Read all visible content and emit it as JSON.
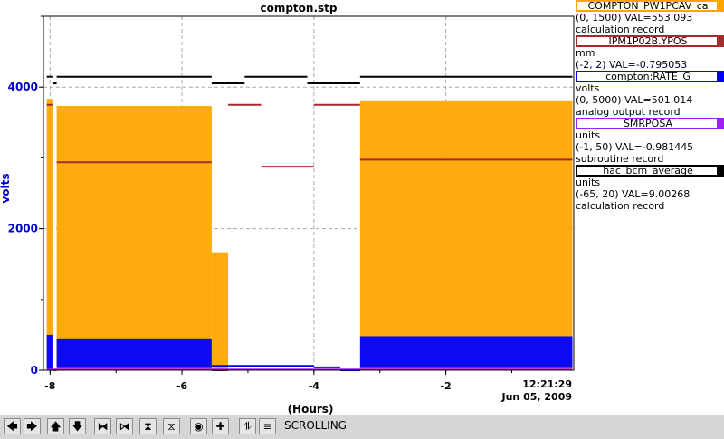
{
  "chart_data": {
    "type": "line",
    "title": "compton.stp",
    "xlabel": "(Hours)",
    "ylabel": "volts",
    "xlim": [
      -8.1,
      -0.06
    ],
    "ylim": [
      0,
      5000
    ],
    "x_ticks": [
      -8,
      -6,
      -4,
      -2
    ],
    "x_tick_labels": [
      "-8",
      "-6",
      "-4",
      "-2"
    ],
    "y_ticks": [
      0,
      2000,
      4000
    ],
    "y_tick_labels": [
      "0",
      "2000",
      "4000"
    ],
    "end_time": "12:21:29",
    "end_date": "Jun 05, 2009",
    "grid": true,
    "series": [
      {
        "name": "COMPTON_PW1PCAV_ca",
        "color": "#ffa500",
        "segments": [
          {
            "x": [
              -8.05,
              -7.95
            ],
            "low": 0,
            "high": 1150
          },
          {
            "x": [
              -7.9,
              -5.55
            ],
            "low": 0,
            "high": 1120
          },
          {
            "x": [
              -5.55,
              -5.3
            ],
            "low": 0,
            "high": 500
          },
          {
            "x": [
              -3.3,
              -0.08
            ],
            "low": 0,
            "high": 1140
          }
        ]
      },
      {
        "name": "IPM1P02B.YPOS",
        "color": "#a52a2a",
        "segments": [
          {
            "x": [
              -8.05,
              -7.95
            ],
            "y": 1.0
          },
          {
            "x": [
              -7.95,
              -7.9
            ],
            "y": -2.0
          },
          {
            "x": [
              -7.9,
              -5.55
            ],
            "y": 0.35
          },
          {
            "x": [
              -5.55,
              -5.3
            ],
            "y": -2.0
          },
          {
            "x": [
              -5.3,
              -4.8
            ],
            "y": 1.0
          },
          {
            "x": [
              -4.8,
              -4.0
            ],
            "y": 0.3
          },
          {
            "x": [
              -4.0,
              -3.3
            ],
            "y": 1.0
          },
          {
            "x": [
              -3.3,
              -0.08
            ],
            "y": 0.38
          }
        ]
      },
      {
        "name": "compton:RATE_G",
        "color": "#0000ff",
        "segments": [
          {
            "x": [
              -8.05,
              -7.95
            ],
            "low": 0,
            "high": 500
          },
          {
            "x": [
              -7.9,
              -5.55
            ],
            "low": 30,
            "high": 450
          },
          {
            "x": [
              -5.55,
              -4.0
            ],
            "y": 60
          },
          {
            "x": [
              -4.0,
              -3.6
            ],
            "y": 40
          },
          {
            "x": [
              -3.6,
              -3.3
            ],
            "y": 0
          },
          {
            "x": [
              -3.3,
              -0.08
            ],
            "low": 30,
            "high": 480
          }
        ]
      },
      {
        "name": "SMRPOSA",
        "color": "#a020f0",
        "segments": [
          {
            "x": [
              -8.05,
              -0.08
            ],
            "y": -0.9
          }
        ]
      },
      {
        "name": "hac_bcm_average",
        "color": "#000000",
        "segments": [
          {
            "x": [
              -8.05,
              -7.95
            ],
            "y": 5.5
          },
          {
            "x": [
              -7.95,
              -7.9
            ],
            "y": 3.9
          },
          {
            "x": [
              -7.9,
              -5.55
            ],
            "y": 5.5
          },
          {
            "x": [
              -5.55,
              -5.05
            ],
            "y": 3.9
          },
          {
            "x": [
              -5.05,
              -4.1
            ],
            "y": 5.5
          },
          {
            "x": [
              -4.1,
              -3.3
            ],
            "y": 3.9
          },
          {
            "x": [
              -3.3,
              -0.08
            ],
            "y": 5.5
          }
        ]
      }
    ]
  },
  "legend": [
    {
      "name": "COMPTON_PW1PCAV_ca",
      "color": "#ffa500",
      "units": "",
      "range": "(0, 1500) VAL=553.093",
      "record": "calculation record"
    },
    {
      "name": "IPM1P02B.YPOS",
      "color": "#a52a2a",
      "units": "mm",
      "range": "(-2, 2) VAL=-0.795053",
      "record": ""
    },
    {
      "name": "compton:RATE_G",
      "color": "#0000ff",
      "units": "volts",
      "range": "(0, 5000) VAL=501.014",
      "record": "analog output record"
    },
    {
      "name": "SMRPOSA",
      "color": "#a020f0",
      "units": "units",
      "range": "(-1, 50) VAL=-0.981445",
      "record": "subroutine record"
    },
    {
      "name": "hac_bcm_average",
      "color": "#000000",
      "units": "units",
      "range": "(-65, 20) VAL=9.00268",
      "record": "calculation record"
    }
  ],
  "toolbar": {
    "mode_label": "SCROLLING",
    "buttons": [
      {
        "name": "pan-left-icon",
        "glyph": "🡄"
      },
      {
        "name": "pan-right-icon",
        "glyph": "🡆"
      },
      {
        "name": "pan-up-icon",
        "glyph": "🡅"
      },
      {
        "name": "pan-down-icon",
        "glyph": "🡇"
      },
      {
        "name": "zoom-in-x-icon",
        "glyph": "⧓"
      },
      {
        "name": "zoom-out-x-icon",
        "glyph": "⧒"
      },
      {
        "name": "zoom-in-y-icon",
        "glyph": "⧗"
      },
      {
        "name": "zoom-out-y-icon",
        "glyph": "⧖"
      },
      {
        "name": "auto-scale-icon",
        "glyph": "◉"
      },
      {
        "name": "reset-icon",
        "glyph": "✚"
      },
      {
        "name": "scroll-mode-icon",
        "glyph": "⥮"
      },
      {
        "name": "legend-icon",
        "glyph": "≡"
      }
    ]
  }
}
